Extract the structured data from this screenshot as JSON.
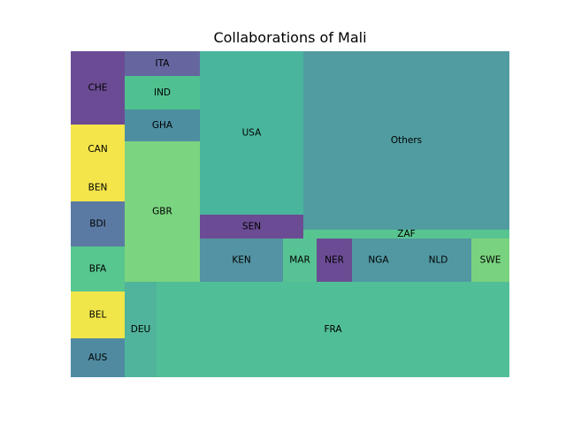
{
  "chart_data": {
    "type": "treemap",
    "title": "Collaborations of Mali",
    "cells": [
      {
        "label": "CHE",
        "color": "#6b4c94"
      },
      {
        "label": "CAN",
        "color": "#f4e54b"
      },
      {
        "label": "BEN",
        "color": "#f4e54b"
      },
      {
        "label": "BDI",
        "color": "#5b7aa3"
      },
      {
        "label": "BFA",
        "color": "#57c68f"
      },
      {
        "label": "BEL",
        "color": "#f0e64a"
      },
      {
        "label": "AUS",
        "color": "#4f8aa0"
      },
      {
        "label": "ITA",
        "color": "#65669f"
      },
      {
        "label": "IND",
        "color": "#4fc08f"
      },
      {
        "label": "GHA",
        "color": "#4e8ea1"
      },
      {
        "label": "GBR",
        "color": "#7bd47f"
      },
      {
        "label": "USA",
        "color": "#4ab59d"
      },
      {
        "label": "SEN",
        "color": "#6b4c94"
      },
      {
        "label": "Others",
        "color": "#509ca1"
      },
      {
        "label": "ZAF",
        "color": "#58c590"
      },
      {
        "label": "KEN",
        "color": "#5393a3"
      },
      {
        "label": "MAR",
        "color": "#57c293"
      },
      {
        "label": "NER",
        "color": "#6b4c94"
      },
      {
        "label": "NGA",
        "color": "#5198a2"
      },
      {
        "label": "NLD",
        "color": "#5198a2"
      },
      {
        "label": "SWE",
        "color": "#79d27f"
      },
      {
        "label": "DEU",
        "color": "#4fb49b"
      },
      {
        "label": "FRA",
        "color": "#50be97"
      }
    ]
  }
}
